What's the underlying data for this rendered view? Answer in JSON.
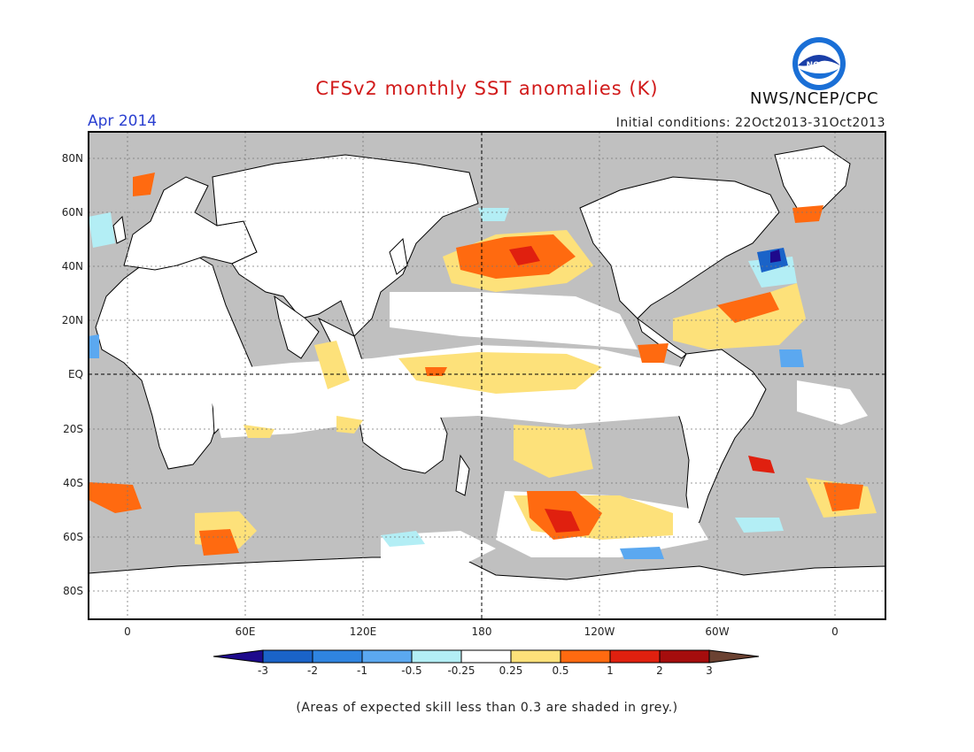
{
  "title": "CFSv2 monthly SST anomalies (K)",
  "month": "Apr 2014",
  "initial_conditions": "Initial conditions: 22Oct2013-31Oct2013",
  "agency": "NWS/NCEP/CPC",
  "logo_text": "NOAA",
  "note": "(Areas of expected skill less than 0.3 are shaded in grey.)",
  "map": {
    "lat_labels": [
      "80N",
      "60N",
      "40N",
      "20N",
      "EQ",
      "20S",
      "40S",
      "60S",
      "80S"
    ],
    "lon_labels": [
      "0",
      "60E",
      "120E",
      "180",
      "120W",
      "60W",
      "0"
    ],
    "colors": {
      "land": "#ffffff",
      "low_skill": "#c0c0c0",
      "grid": "#555555"
    }
  },
  "colorbar": {
    "labels": [
      "-3",
      "-2",
      "-1",
      "-0.5",
      "-0.25",
      "0.25",
      "0.5",
      "1",
      "2",
      "3"
    ],
    "colors": [
      "#1e0a8c",
      "#1a63c8",
      "#2f84e0",
      "#5ba8f0",
      "#b3eef5",
      "#ffffff",
      "#fde17a",
      "#ff6a10",
      "#e0200f",
      "#a50d0d",
      "#6b4232"
    ]
  },
  "anomaly_regions": [
    {
      "name": "North Pacific warm anomaly",
      "level": "1"
    },
    {
      "name": "Equatorial Pacific warm anomaly",
      "level": "0.25"
    },
    {
      "name": "South Pacific warm anomaly",
      "level": "1"
    },
    {
      "name": "North Atlantic cold anomaly",
      "level": "-2"
    },
    {
      "name": "Tropical Atlantic warm anomaly",
      "level": "0.5"
    },
    {
      "name": "Southern Indian Ocean warm anomaly",
      "level": "0.5"
    }
  ]
}
